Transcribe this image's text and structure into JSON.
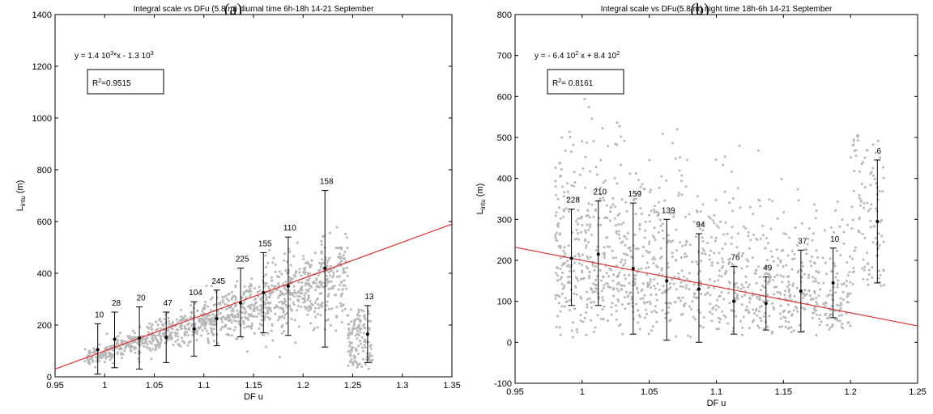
{
  "chart_data": [
    {
      "type": "scatter",
      "panel_label": "(a)",
      "title": "Integral scale vs DFu (5.8 m) diurnal time  6h-18h 14-21 September",
      "xlabel": "DF u",
      "ylabel": "L",
      "ylabel_sub": "intu",
      "ylabel_unit": " (m)",
      "xlim": [
        0.95,
        1.35
      ],
      "ylim": [
        0,
        1400
      ],
      "xticks": [
        0.95,
        1.0,
        1.05,
        1.1,
        1.15,
        1.2,
        1.25,
        1.3,
        1.35
      ],
      "xtick_labels": [
        "0.95",
        "1",
        "1.05",
        "1.1",
        "1.15",
        "1.2",
        "1.25",
        "1.3",
        "1.35"
      ],
      "yticks": [
        0,
        200,
        400,
        600,
        800,
        1000,
        1200,
        1400
      ],
      "ytick_labels": [
        "0",
        "200",
        "400",
        "600",
        "800",
        "1000",
        "1200",
        "1400"
      ],
      "equation_parts": [
        "y = 1.4 10",
        "3",
        "*x - 1.3 10",
        "3"
      ],
      "r2_parts": [
        "R",
        "2",
        "=0.9515"
      ],
      "fit_line": {
        "slope": 1400,
        "intercept": -1300,
        "color": "#e03030"
      },
      "scatter_color": "#b8b8b8",
      "scatter": {
        "x_min": 0.98,
        "x_max": 1.27,
        "y_max": 1300,
        "count": 1300
      },
      "bins": [
        {
          "x": 0.993,
          "mean": 105,
          "low": 10,
          "high": 205,
          "count": "10"
        },
        {
          "x": 1.01,
          "mean": 145,
          "low": 35,
          "high": 250,
          "count": "28"
        },
        {
          "x": 1.035,
          "mean": 150,
          "low": 30,
          "high": 270,
          "count": "20"
        },
        {
          "x": 1.062,
          "mean": 152,
          "low": 55,
          "high": 250,
          "count": "47"
        },
        {
          "x": 1.09,
          "mean": 185,
          "low": 80,
          "high": 290,
          "count": "104"
        },
        {
          "x": 1.113,
          "mean": 225,
          "low": 120,
          "high": 335,
          "count": "245"
        },
        {
          "x": 1.137,
          "mean": 285,
          "low": 155,
          "high": 420,
          "count": "225"
        },
        {
          "x": 1.16,
          "mean": 325,
          "low": 170,
          "high": 480,
          "count": "155"
        },
        {
          "x": 1.185,
          "mean": 350,
          "low": 160,
          "high": 540,
          "count": "110"
        },
        {
          "x": 1.222,
          "mean": 420,
          "low": 115,
          "high": 720,
          "count": "158"
        },
        {
          "x": 1.265,
          "mean": 165,
          "low": 55,
          "high": 275,
          "count": "13"
        }
      ]
    },
    {
      "type": "scatter",
      "panel_label": "(b)",
      "title": "Integral scale vs DFu(5.8 m) night time 18h-6h 14-21 September",
      "xlabel": "DF u",
      "ylabel": "L",
      "ylabel_sub": "intu",
      "ylabel_unit": " (m)",
      "xlim": [
        0.95,
        1.25
      ],
      "ylim": [
        -100,
        800
      ],
      "xticks": [
        0.95,
        1.0,
        1.05,
        1.1,
        1.15,
        1.2,
        1.25
      ],
      "xtick_labels": [
        "0.95",
        "1",
        "1.05",
        "1.1",
        "1.15",
        "1.2",
        "1.25"
      ],
      "yticks": [
        -100,
        0,
        100,
        200,
        300,
        400,
        500,
        600,
        700,
        800
      ],
      "ytick_labels": [
        "-100",
        "0",
        "100",
        "200",
        "300",
        "400",
        "500",
        "600",
        "700",
        "800"
      ],
      "equation_parts": [
        "y = - 6.4 10",
        "2",
        " x + 8.4 10",
        "2"
      ],
      "r2_parts": [
        "R",
        "2",
        "= 0.8161"
      ],
      "fit_line": {
        "slope": -640,
        "intercept": 840,
        "color": "#e03030"
      },
      "scatter_color": "#b8b8b8",
      "scatter": {
        "x_min": 0.98,
        "x_max": 1.225,
        "y_max": 780,
        "count": 1300
      },
      "bins": [
        {
          "x": 0.992,
          "mean": 205,
          "low": 90,
          "high": 325,
          "count": "228"
        },
        {
          "x": 1.012,
          "mean": 215,
          "low": 90,
          "high": 345,
          "count": "210"
        },
        {
          "x": 1.038,
          "mean": 180,
          "low": 20,
          "high": 340,
          "count": "159"
        },
        {
          "x": 1.063,
          "mean": 150,
          "low": 5,
          "high": 300,
          "count": "139"
        },
        {
          "x": 1.087,
          "mean": 130,
          "low": 0,
          "high": 265,
          "count": "94"
        },
        {
          "x": 1.113,
          "mean": 100,
          "low": 20,
          "high": 185,
          "count": "76"
        },
        {
          "x": 1.137,
          "mean": 95,
          "low": 30,
          "high": 160,
          "count": "49"
        },
        {
          "x": 1.163,
          "mean": 125,
          "low": 25,
          "high": 225,
          "count": "37"
        },
        {
          "x": 1.187,
          "mean": 145,
          "low": 60,
          "high": 230,
          "count": "10"
        },
        {
          "x": 1.22,
          "mean": 295,
          "low": 145,
          "high": 445,
          "count": "6"
        }
      ]
    }
  ]
}
